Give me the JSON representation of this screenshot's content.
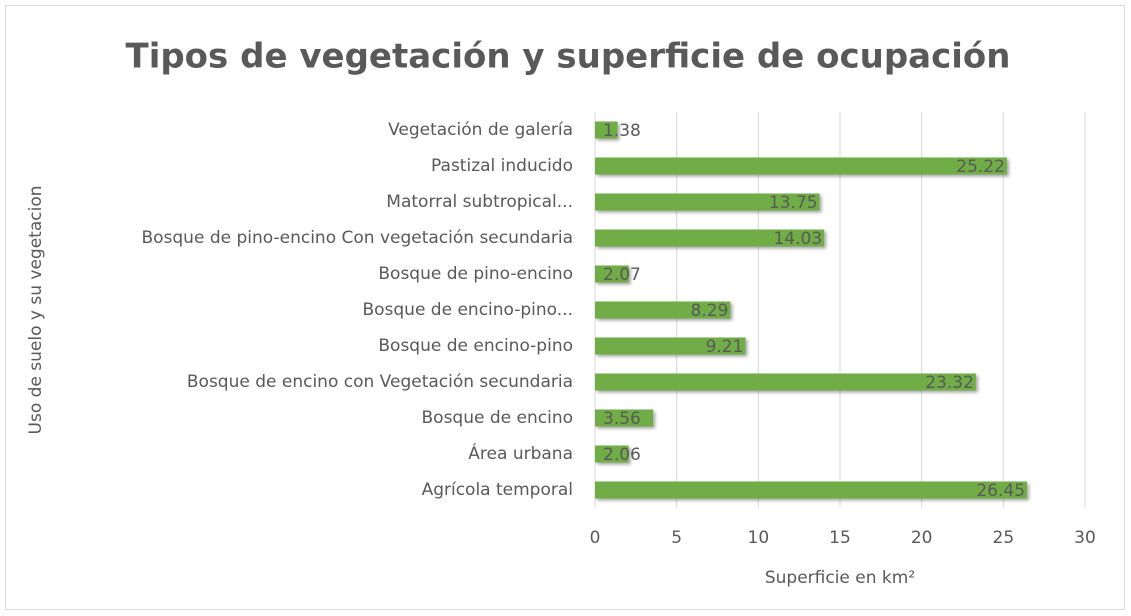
{
  "chart_data": {
    "type": "bar",
    "orientation": "horizontal",
    "title": "Tipos de vegetación y superficie de ocupación",
    "x_label": "Superficie en km²",
    "y_label": "Uso de suelo y su vegetacion",
    "categories": [
      "Vegetación de galería",
      "Pastizal inducido",
      "Matorral subtropical...",
      "Bosque de pino-encino Con vegetación secundaria",
      "Bosque de pino-encino",
      "Bosque de encino-pino...",
      "Bosque de encino-pino",
      "Bosque de encino con Vegetación secundaria",
      "Bosque de encino",
      "Área urbana",
      "Agrícola temporal"
    ],
    "values": [
      1.38,
      25.22,
      13.75,
      14.03,
      2.07,
      8.29,
      9.21,
      23.32,
      3.56,
      2.06,
      26.45
    ],
    "color": "#70ad47",
    "xlim": [
      0,
      30
    ],
    "xticks": [
      0,
      5,
      10,
      15,
      20,
      25,
      30
    ],
    "grid": true,
    "data_labels": true
  }
}
